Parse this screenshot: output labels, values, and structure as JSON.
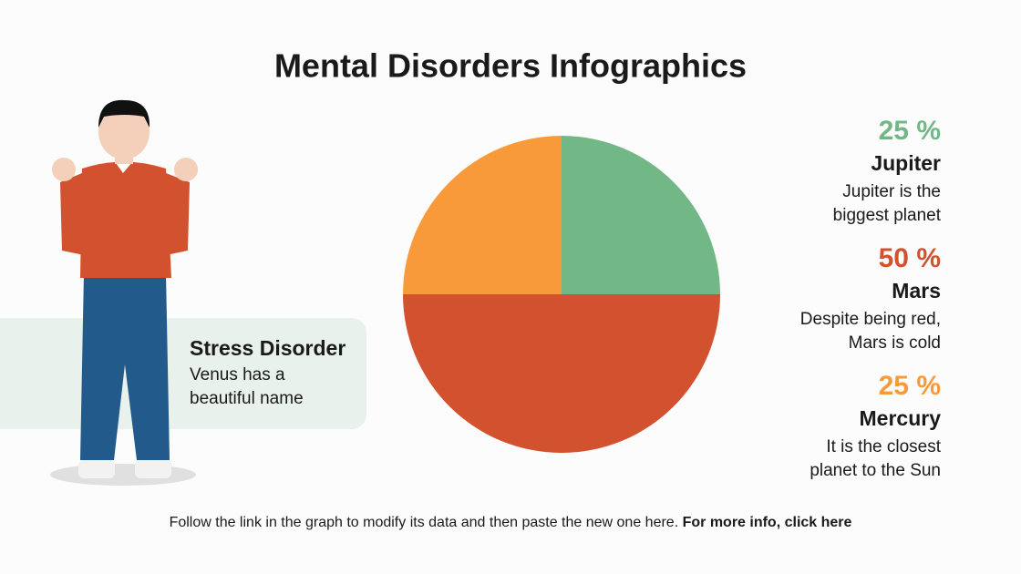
{
  "chart_data": {
    "type": "pie",
    "title": "Mental Disorders Infographics",
    "categories": [
      "Jupiter",
      "Mars",
      "Mercury"
    ],
    "values": [
      25,
      50,
      25
    ],
    "value_labels": [
      "25 %",
      "50 %",
      "25 %"
    ],
    "colors": [
      "#72b886",
      "#d2522f",
      "#f99a3a"
    ],
    "descriptions": [
      [
        "Jupiter is the",
        "biggest planet"
      ],
      [
        "Despite being red,",
        "Mars is cold"
      ],
      [
        "It is the closest",
        "planet to the Sun"
      ]
    ]
  },
  "card": {
    "title": "Stress Disorder",
    "lines": [
      "Venus has a",
      "beautiful name"
    ]
  },
  "footer": {
    "text": "Follow the link in the graph to modify its data and then paste the new one here.",
    "link": "For more info, click here"
  }
}
